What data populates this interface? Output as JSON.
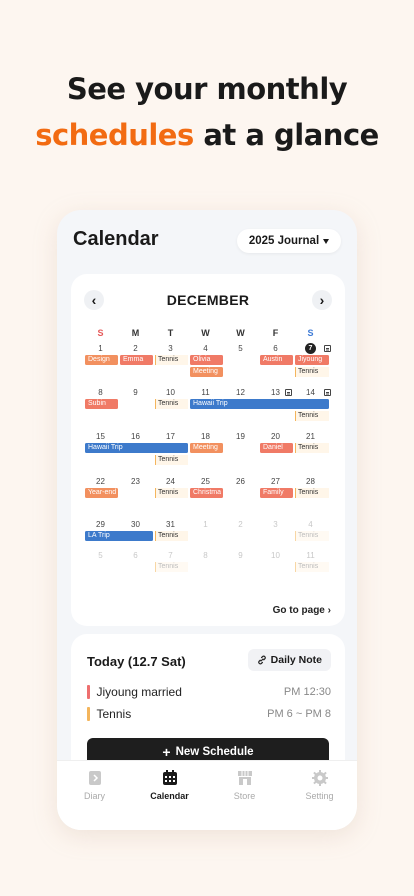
{
  "headline": {
    "line1": "See your monthly",
    "accent": "schedules",
    "line2_rest": " at a glance"
  },
  "app": {
    "title": "Calendar",
    "journal_selector": "2025 Journal"
  },
  "calendar": {
    "month": "DECEMBER",
    "weekdays": [
      "S",
      "M",
      "T",
      "W",
      "W",
      "F",
      "S"
    ],
    "weeks": [
      [
        "1",
        "2",
        "3",
        "4",
        "5",
        "6",
        "7"
      ],
      [
        "8",
        "9",
        "10",
        "11",
        "12",
        "13",
        "14"
      ],
      [
        "15",
        "16",
        "17",
        "18",
        "19",
        "20",
        "21"
      ],
      [
        "22",
        "23",
        "24",
        "25",
        "26",
        "27",
        "28"
      ],
      [
        "29",
        "30",
        "31",
        "1",
        "2",
        "3",
        "4"
      ],
      [
        "5",
        "6",
        "7",
        "8",
        "9",
        "10",
        "11"
      ]
    ],
    "today": "7",
    "events": {
      "design": "Design",
      "emma": "Emma",
      "tennis": "Tennis",
      "olivia": "Olivia",
      "meeting": "Meeting",
      "austin": "Austin",
      "jiyoung": "Jiyoung",
      "subin": "Subin",
      "hawaii": "Hawaii Trip",
      "daniel": "Daniel",
      "yearend": "Year-end",
      "christmas": "Christma",
      "family": "Family",
      "la": "LA Trip"
    },
    "goto_label": "Go to page"
  },
  "today": {
    "title": "Today (12.7 Sat)",
    "daily_note": "Daily Note",
    "schedules": [
      {
        "title": "Jiyoung married",
        "time": "PM 12:30",
        "color": "#EE6F6F"
      },
      {
        "title": "Tennis",
        "time": "PM 6 ~ PM 8",
        "color": "#F4B55C"
      }
    ],
    "new_button": "New Schedule"
  },
  "tabs": [
    {
      "label": "Diary",
      "icon": "diary-icon"
    },
    {
      "label": "Calendar",
      "icon": "calendar-icon",
      "active": true
    },
    {
      "label": "Store",
      "icon": "store-icon"
    },
    {
      "label": "Setting",
      "icon": "gear-icon"
    }
  ]
}
